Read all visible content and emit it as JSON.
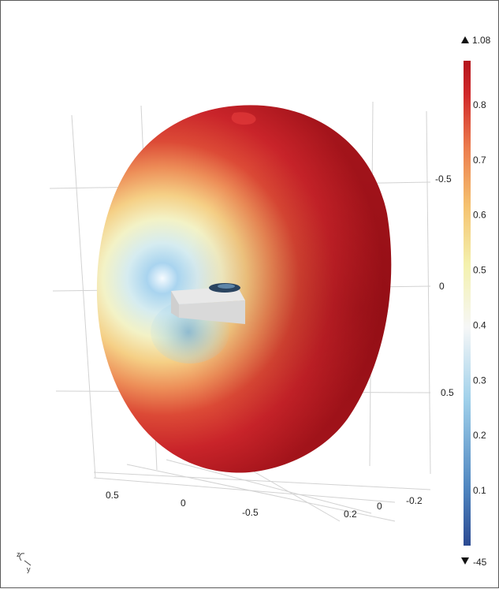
{
  "chart_data": {
    "type": "3d-surface",
    "colormap": [
      "#2b4a92",
      "#4f86c0",
      "#9fd0ea",
      "#f6f7f7",
      "#f4f1ad",
      "#f5c26f",
      "#ec7c4d",
      "#d0282a",
      "#b4151c"
    ],
    "colorbar": {
      "max_label": "1.08",
      "min_label": "-45",
      "ticks": [
        "0.8",
        "0.7",
        "0.6",
        "0.5",
        "0.4",
        "0.3",
        "0.2",
        "0.1"
      ],
      "tick_values": [
        0.8,
        0.7,
        0.6,
        0.5,
        0.4,
        0.3,
        0.2,
        0.1
      ],
      "range": [
        0,
        0.88
      ]
    },
    "axes": {
      "right_ticks": [
        "-0.5",
        "0",
        "0.5"
      ],
      "bottom_front_ticks": [
        "0.5",
        "0",
        "-0.5"
      ],
      "bottom_back_ticks": [
        "0.2",
        "0",
        "-0.2"
      ],
      "triad_labels": [
        "z",
        "y"
      ]
    },
    "grid": true,
    "legend_position": "right"
  }
}
